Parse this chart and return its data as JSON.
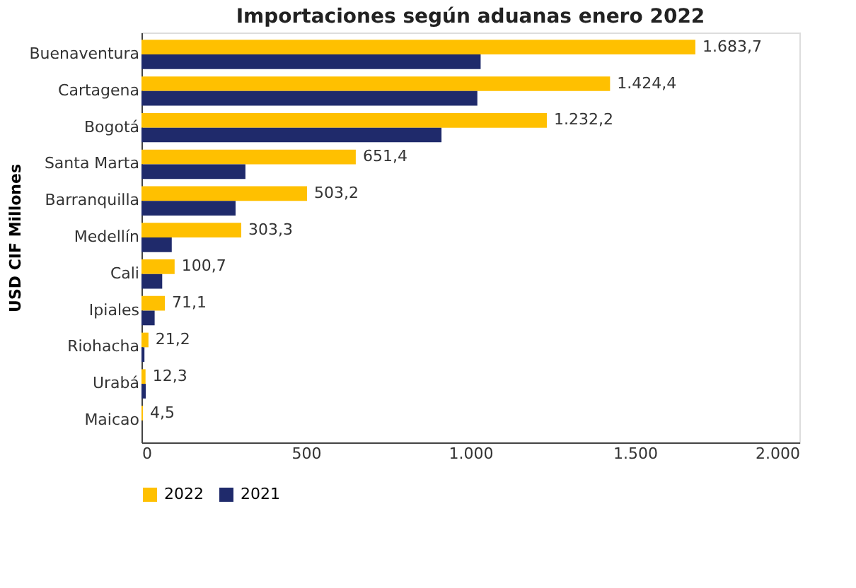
{
  "chart_data": {
    "type": "bar",
    "orientation": "horizontal",
    "title": "Importaciones según aduanas enero 2022",
    "ylabel": "USD CIF Millones",
    "categories": [
      "Buenaventura",
      "Cartagena",
      "Bogotá",
      "Santa Marta",
      "Barranquilla",
      "Medellín",
      "Cali",
      "Ipiales",
      "Riohacha",
      "Urabá",
      "Maicao"
    ],
    "series": [
      {
        "name": "2022",
        "color": "#ffc000",
        "values": [
          1683.7,
          1424.4,
          1232.2,
          651.4,
          503.2,
          303.3,
          100.7,
          71.1,
          21.2,
          12.3,
          4.5
        ],
        "value_labels": [
          "1.683,7",
          "1.424,4",
          "1.232,2",
          "651,4",
          "503,2",
          "303,3",
          "100,7",
          "71,1",
          "21,2",
          "12,3",
          "4,5"
        ]
      },
      {
        "name": "2021",
        "color": "#1f2a6b",
        "values": [
          1031,
          1021,
          912,
          316,
          286,
          92,
          63,
          40,
          9,
          13,
          null
        ]
      }
    ],
    "xlim": [
      0,
      2000
    ],
    "xticks": [
      0,
      {
        "value": 500,
        "label": "500"
      },
      {
        "value": 1000,
        "label": "1.000"
      },
      {
        "value": 1500,
        "label": "1.500"
      },
      {
        "value": 2000,
        "label": "2.000"
      }
    ],
    "grid": false,
    "legend": "bottom"
  }
}
